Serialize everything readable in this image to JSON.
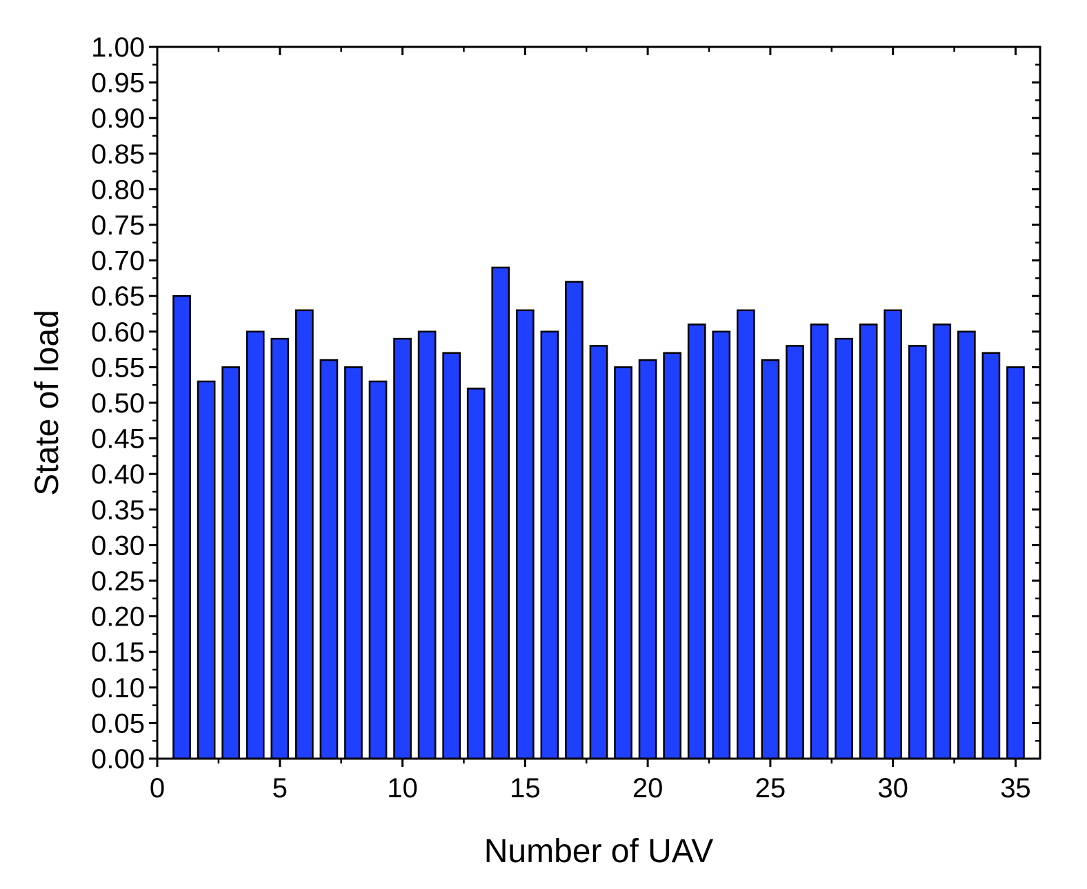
{
  "chart_data": {
    "type": "bar",
    "title": "",
    "xlabel": "Number of UAV",
    "ylabel": "State of load",
    "x": [
      1,
      2,
      3,
      4,
      5,
      6,
      7,
      8,
      9,
      10,
      11,
      12,
      13,
      14,
      15,
      16,
      17,
      18,
      19,
      20,
      21,
      22,
      23,
      24,
      25,
      26,
      27,
      28,
      29,
      30,
      31,
      32,
      33,
      34,
      35
    ],
    "values": [
      0.65,
      0.53,
      0.55,
      0.6,
      0.59,
      0.63,
      0.56,
      0.55,
      0.53,
      0.59,
      0.6,
      0.57,
      0.52,
      0.69,
      0.63,
      0.6,
      0.67,
      0.58,
      0.55,
      0.56,
      0.57,
      0.61,
      0.6,
      0.63,
      0.56,
      0.58,
      0.61,
      0.59,
      0.61,
      0.63,
      0.58,
      0.61,
      0.6,
      0.57,
      0.55
    ],
    "xlim": [
      0,
      36
    ],
    "ylim": [
      0,
      1
    ],
    "xticks": [
      "0",
      "5",
      "10",
      "15",
      "20",
      "25",
      "30",
      "35"
    ],
    "yticks": [
      "0.00",
      "0.05",
      "0.10",
      "0.15",
      "0.20",
      "0.25",
      "0.30",
      "0.35",
      "0.40",
      "0.45",
      "0.50",
      "0.55",
      "0.60",
      "0.65",
      "0.70",
      "0.75",
      "0.80",
      "0.85",
      "0.90",
      "0.95",
      "1.00"
    ],
    "bar_color": "#2040ff",
    "edge_color": "#000000",
    "grid": false,
    "legend": "none"
  }
}
